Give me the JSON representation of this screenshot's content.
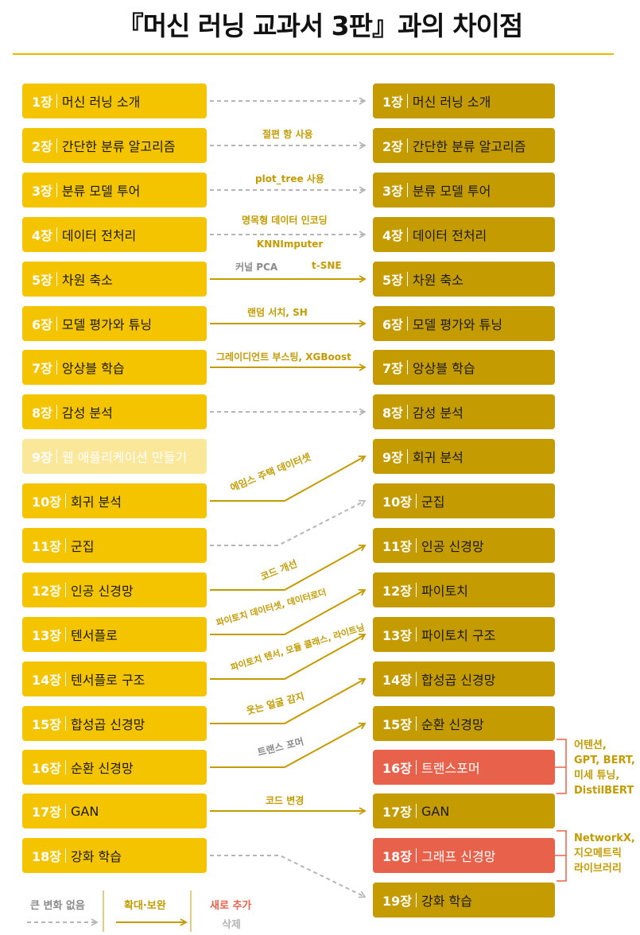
{
  "title": "『머신 러닝 교과서 3판』과의 차이점",
  "left": [
    {
      "num": "1장",
      "name": "머신 러닝 소개"
    },
    {
      "num": "2장",
      "name": "간단한 분류 알고리즘"
    },
    {
      "num": "3장",
      "name": "분류 모델 투어"
    },
    {
      "num": "4장",
      "name": "데이터 전처리"
    },
    {
      "num": "5장",
      "name": "차원 축소"
    },
    {
      "num": "6장",
      "name": "모델 평가와 튜닝"
    },
    {
      "num": "7장",
      "name": "앙상블 학습"
    },
    {
      "num": "8장",
      "name": "감성 분석"
    },
    {
      "num": "9장",
      "name": "웹 애플리케이션 만들기"
    },
    {
      "num": "10장",
      "name": "회귀 분석"
    },
    {
      "num": "11장",
      "name": "군집"
    },
    {
      "num": "12장",
      "name": "인공 신경망"
    },
    {
      "num": "13장",
      "name": "텐서플로"
    },
    {
      "num": "14장",
      "name": "텐서플로 구조"
    },
    {
      "num": "15장",
      "name": "합성곱 신경망"
    },
    {
      "num": "16장",
      "name": "순환 신경망"
    },
    {
      "num": "17장",
      "name": "GAN"
    },
    {
      "num": "18장",
      "name": "강화 학습"
    }
  ],
  "right": [
    {
      "num": "1장",
      "name": "머신 러닝 소개"
    },
    {
      "num": "2장",
      "name": "간단한 분류 알고리즘"
    },
    {
      "num": "3장",
      "name": "분류 모델 투어"
    },
    {
      "num": "4장",
      "name": "데이터 전처리"
    },
    {
      "num": "5장",
      "name": "차원 축소"
    },
    {
      "num": "6장",
      "name": "모델 평가와 튜닝"
    },
    {
      "num": "7장",
      "name": "앙상블 학습"
    },
    {
      "num": "8장",
      "name": "감성 분석"
    },
    {
      "num": "9장",
      "name": "회귀 분석"
    },
    {
      "num": "10장",
      "name": "군집"
    },
    {
      "num": "11장",
      "name": "인공 신경망"
    },
    {
      "num": "12장",
      "name": "파이토치"
    },
    {
      "num": "13장",
      "name": "파이토치 구조"
    },
    {
      "num": "14장",
      "name": "합성곱 신경망"
    },
    {
      "num": "15장",
      "name": "순환 신경망"
    },
    {
      "num": "16장",
      "name": "트랜스포머"
    },
    {
      "num": "17장",
      "name": "GAN"
    },
    {
      "num": "18장",
      "name": "그래프 신경망"
    },
    {
      "num": "19장",
      "name": "강화 학습"
    }
  ],
  "labels": {
    "c2": "절편 항 사용",
    "c3": "plot_tree 사용",
    "c4a": "명목형 데이터 인코딩",
    "c4b": "KNNImputer",
    "c5a": "커널 PCA",
    "c5b": "t-SNE",
    "c6": "랜덤 서치, SH",
    "c7": "그레이디언트 부스팅, XGBoost",
    "c10": "에임스 주택 데이터셋",
    "c12": "코드 개선",
    "c13": "파이토치 데이터셋, 데이터로더",
    "c14": "파이토치 텐서, 모듈 클래스, 라이트닝",
    "c15": "웃는 얼굴 감지",
    "c16": "트랜스 포머",
    "c17": "코드 변경"
  },
  "side_notes": {
    "transformer": [
      "어텐션,",
      "GPT, BERT,",
      "미세 튜닝,",
      "DistilBERT"
    ],
    "graph": [
      "NetworkX,",
      "지오메트릭",
      "라이브러리"
    ]
  },
  "legend": {
    "no_change": "큰 변화 없음",
    "expand": "확대·보완",
    "new": "새로 추가",
    "deleted": "삭제"
  },
  "colors": {
    "left_box": "#f5c400",
    "right_box": "#c49b00",
    "new_box": "#e8614a",
    "deleted_box": "#fbe79a",
    "arrow_expand": "#c49b00",
    "arrow_nochange": "#b5b5b5"
  }
}
